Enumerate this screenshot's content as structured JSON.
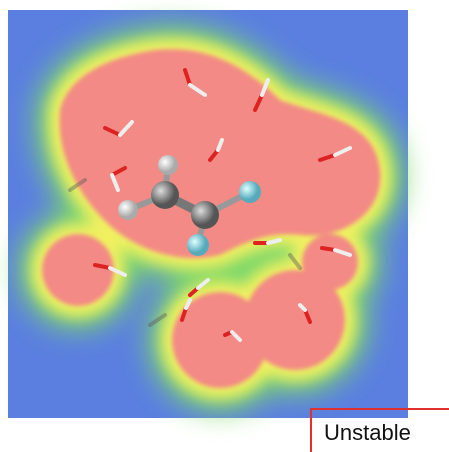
{
  "label": "Unstable"
}
